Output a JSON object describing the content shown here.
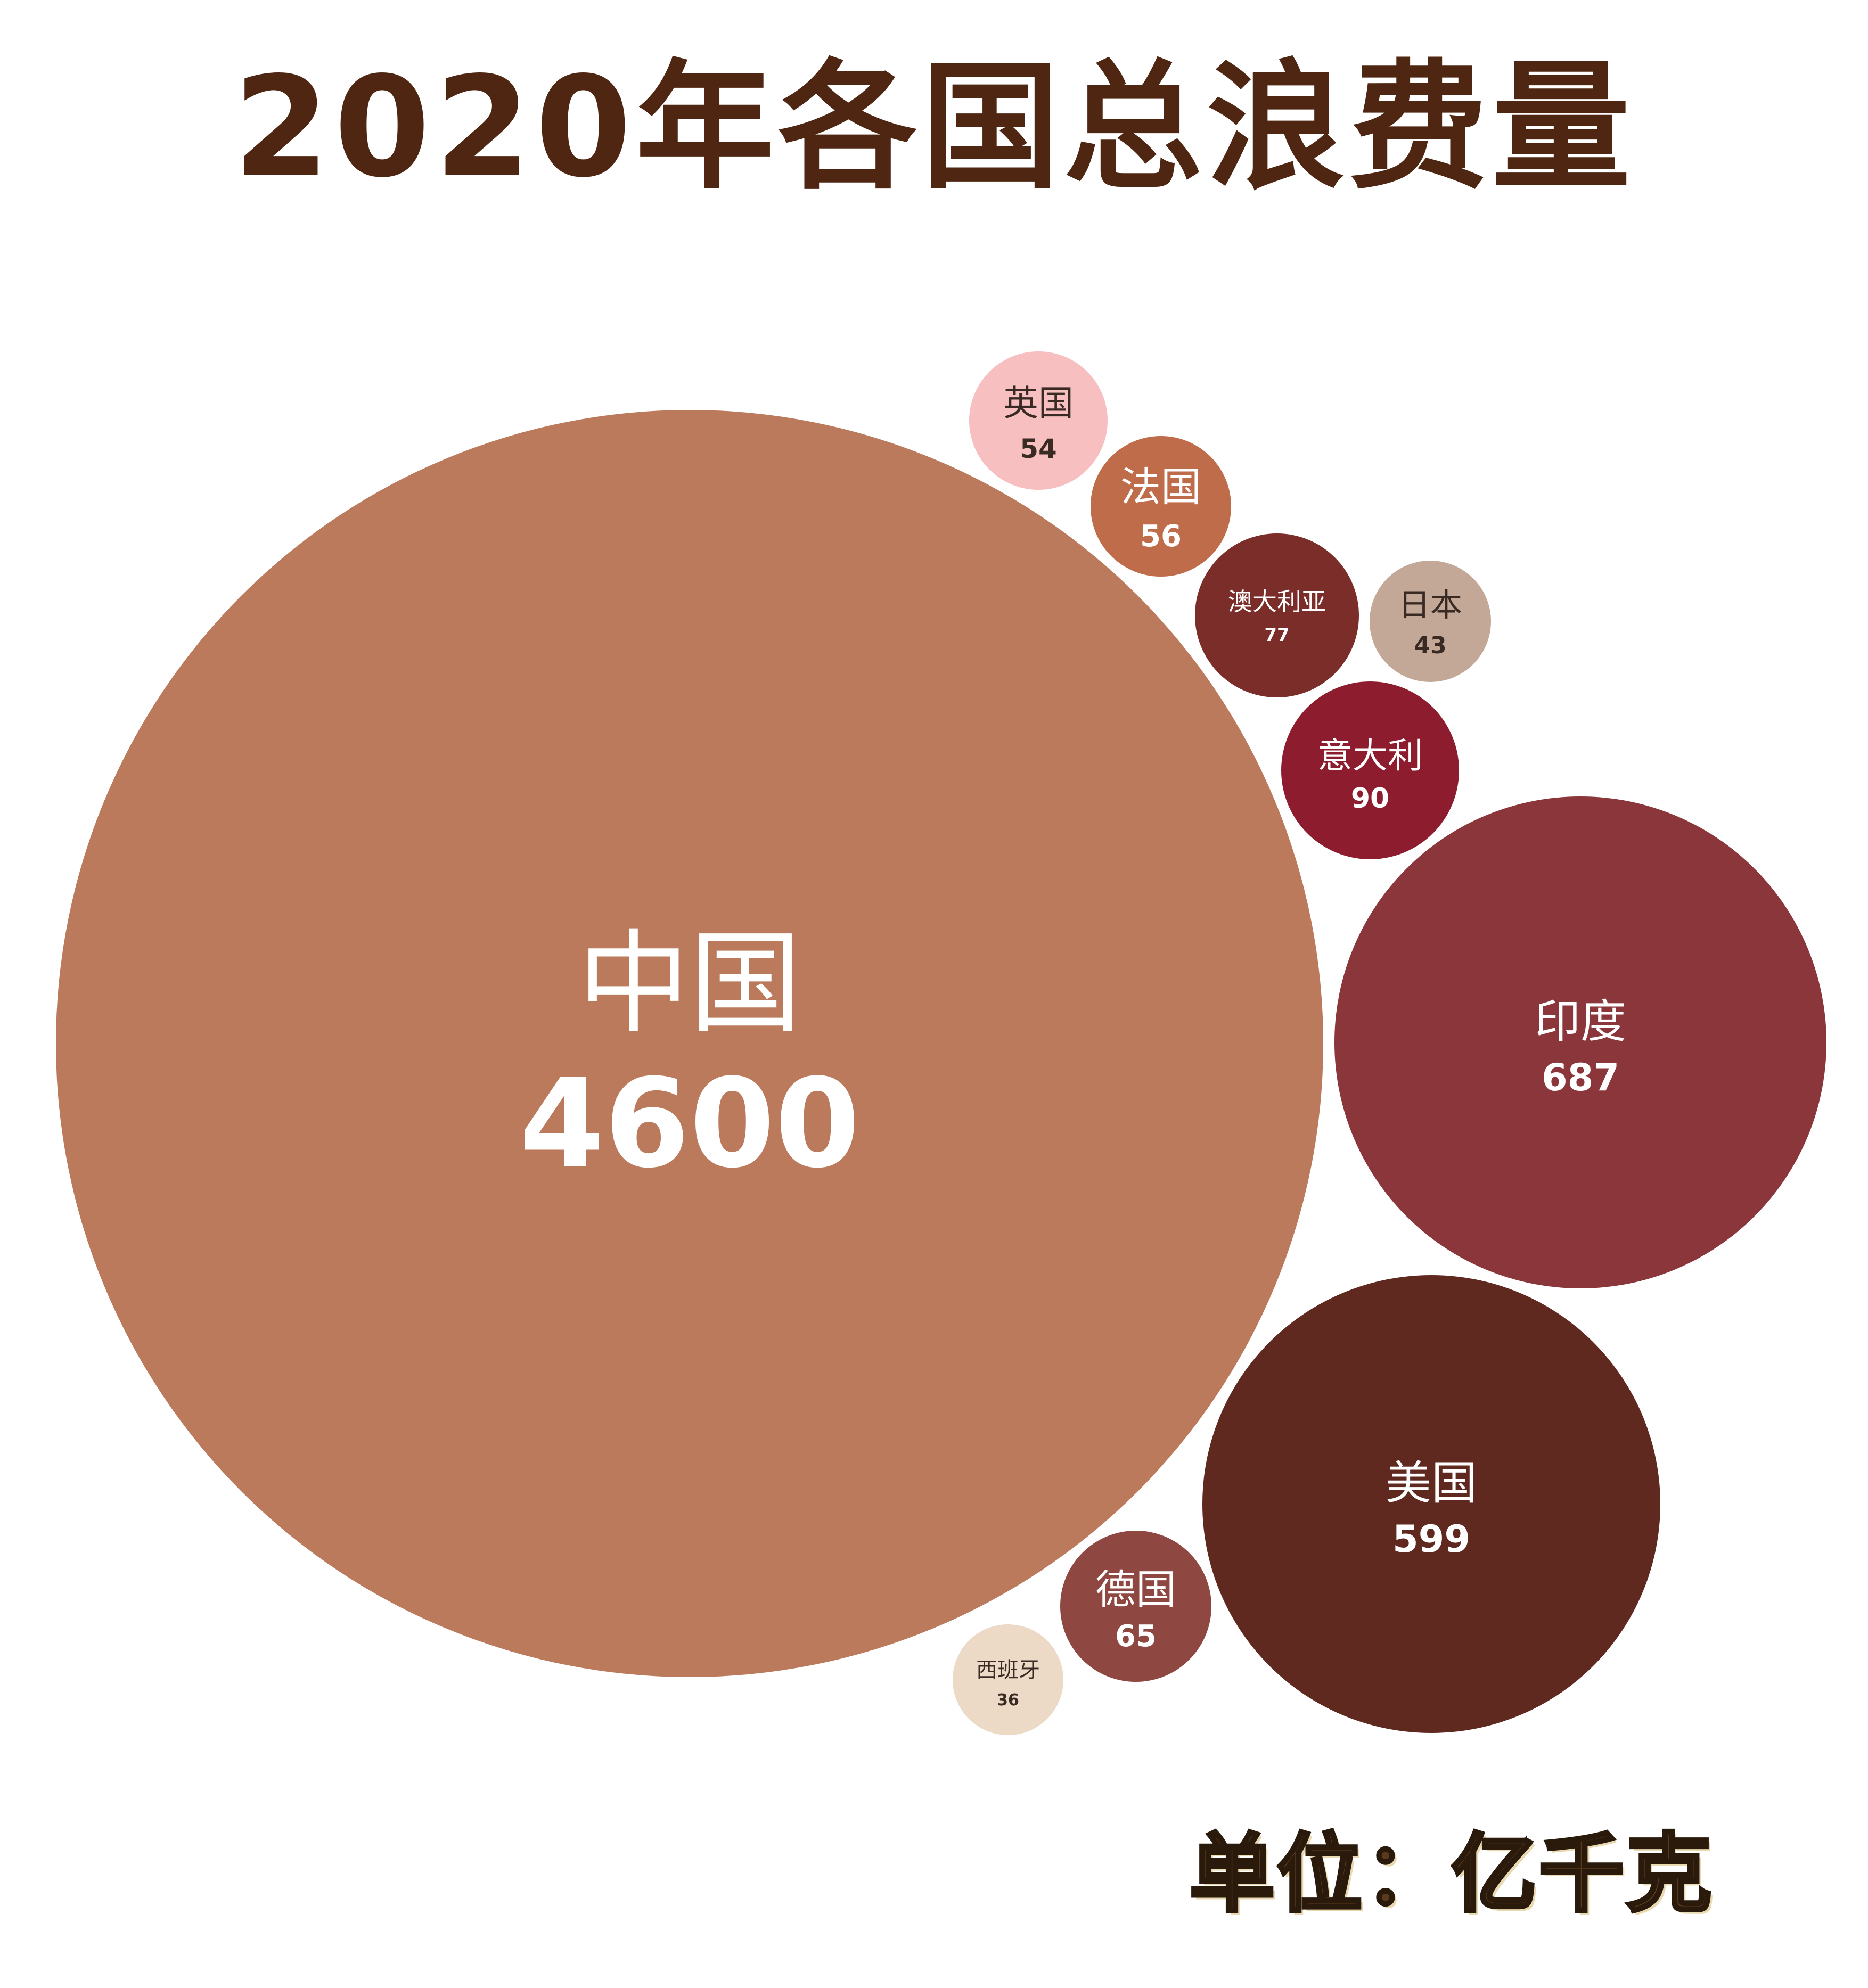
{
  "chart_data": {
    "type": "bubble",
    "title": "2020年各国总浪费量",
    "unit_note": "单位：亿千克",
    "series": [
      {
        "country": "中国",
        "value": 4600,
        "color": "#bb7a5c",
        "text_color": "#ffffff"
      },
      {
        "country": "印度",
        "value": 687,
        "color": "#8a363a",
        "text_color": "#ffffff"
      },
      {
        "country": "美国",
        "value": 599,
        "color": "#602920",
        "text_color": "#ffffff"
      },
      {
        "country": "意大利",
        "value": 90,
        "color": "#8c1c2e",
        "text_color": "#ffffff"
      },
      {
        "country": "澳大利亚",
        "value": 77,
        "color": "#7a2d29",
        "text_color": "#ffffff"
      },
      {
        "country": "德国",
        "value": 65,
        "color": "#8f4741",
        "text_color": "#ffffff"
      },
      {
        "country": "法国",
        "value": 56,
        "color": "#bf6c4b",
        "text_color": "#ffffff"
      },
      {
        "country": "英国",
        "value": 54,
        "color": "#f7bfc0",
        "text_color": "#3a2a24"
      },
      {
        "country": "日本",
        "value": 43,
        "color": "#c3a898",
        "text_color": "#3a2a24"
      },
      {
        "country": "西班牙",
        "value": 36,
        "color": "#ecd9c6",
        "text_color": "#3a2a24"
      }
    ]
  }
}
